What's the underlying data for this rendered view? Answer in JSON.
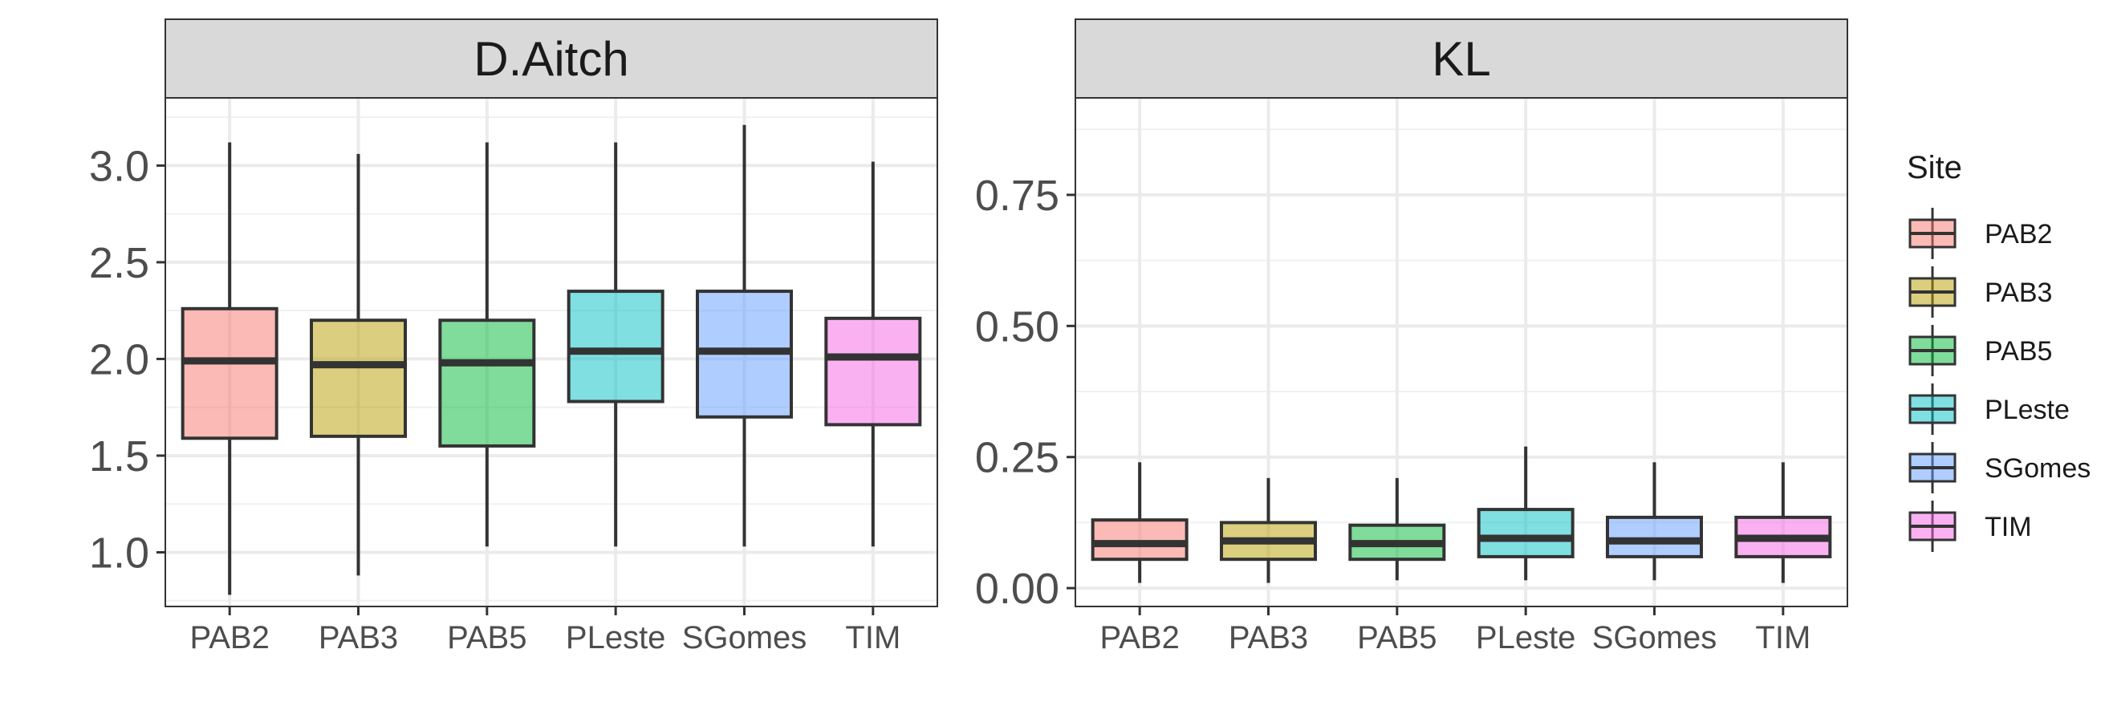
{
  "chart_data": {
    "type": "box",
    "categories": [
      "PAB2",
      "PAB3",
      "PAB5",
      "PLeste",
      "SGomes",
      "TIM"
    ],
    "legend": {
      "title": "Site",
      "position": "right",
      "colors": [
        "#F8766D",
        "#B79F00",
        "#00BA38",
        "#00BFC4",
        "#619CFF",
        "#F564E3"
      ]
    },
    "grid": true,
    "panels": [
      {
        "strip": "D.Aitch",
        "ylim": [
          0.72,
          3.35
        ],
        "yticks": [
          1.0,
          1.5,
          2.0,
          2.5,
          3.0
        ],
        "yticklabels": [
          "1.0",
          "1.5",
          "2.0",
          "2.5",
          "3.0"
        ],
        "boxes": [
          {
            "min": 0.78,
            "q1": 1.59,
            "median": 1.99,
            "q3": 2.26,
            "max": 3.12
          },
          {
            "min": 0.88,
            "q1": 1.6,
            "median": 1.97,
            "q3": 2.2,
            "max": 3.06
          },
          {
            "min": 1.03,
            "q1": 1.55,
            "median": 1.98,
            "q3": 2.2,
            "max": 3.12
          },
          {
            "min": 1.03,
            "q1": 1.78,
            "median": 2.04,
            "q3": 2.35,
            "max": 3.12
          },
          {
            "min": 1.03,
            "q1": 1.7,
            "median": 2.04,
            "q3": 2.35,
            "max": 3.21
          },
          {
            "min": 1.03,
            "q1": 1.66,
            "median": 2.01,
            "q3": 2.21,
            "max": 3.02
          }
        ]
      },
      {
        "strip": "KL",
        "ylim": [
          -0.035,
          0.935
        ],
        "yticks": [
          0.0,
          0.25,
          0.5,
          0.75
        ],
        "yticklabels": [
          "0.00",
          "0.25",
          "0.50",
          "0.75"
        ],
        "boxes": [
          {
            "min": 0.01,
            "q1": 0.055,
            "median": 0.085,
            "q3": 0.13,
            "max": 0.24
          },
          {
            "min": 0.01,
            "q1": 0.055,
            "median": 0.09,
            "q3": 0.125,
            "max": 0.21
          },
          {
            "min": 0.015,
            "q1": 0.055,
            "median": 0.085,
            "q3": 0.12,
            "max": 0.21
          },
          {
            "min": 0.015,
            "q1": 0.06,
            "median": 0.095,
            "q3": 0.15,
            "max": 0.27
          },
          {
            "min": 0.015,
            "q1": 0.06,
            "median": 0.09,
            "q3": 0.135,
            "max": 0.24
          },
          {
            "min": 0.01,
            "q1": 0.06,
            "median": 0.095,
            "q3": 0.135,
            "max": 0.24
          }
        ]
      }
    ]
  }
}
